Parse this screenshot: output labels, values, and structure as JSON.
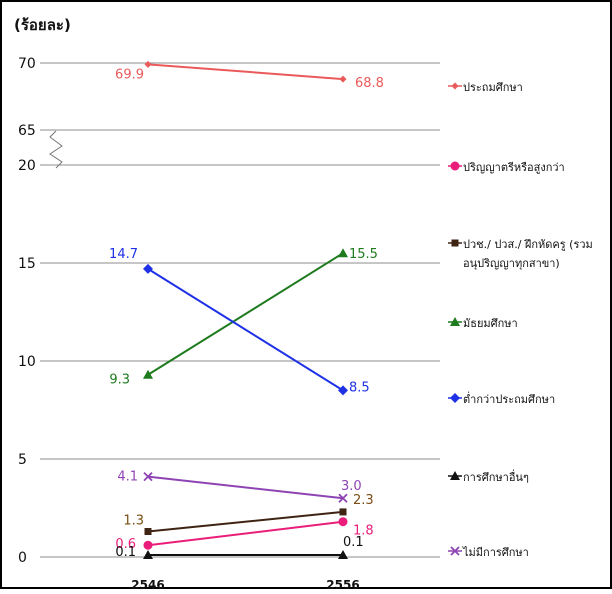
{
  "chart_data": {
    "type": "line",
    "unit_label": "(ร้อยละ)",
    "categories": [
      "2546",
      "2556"
    ],
    "y_ticks_upper": [
      "70",
      "65"
    ],
    "y_ticks_lower": [
      "20",
      "15",
      "10",
      "5",
      "0"
    ],
    "axis_break": true,
    "grid": true,
    "legend_position": "right",
    "series": [
      {
        "key": "primary",
        "name": "ประถมศึกษา",
        "values": [
          69.9,
          68.8
        ],
        "labels": [
          "69.9",
          "68.8"
        ],
        "color": "#ea5a5a",
        "marker": "diamond-small"
      },
      {
        "key": "bachelor",
        "name": "ปริญญาตรีหรือสูงกว่า",
        "values": [
          0.6,
          1.8
        ],
        "labels": [
          "0.6",
          "1.8"
        ],
        "color": "#ea1e7a",
        "marker": "circle"
      },
      {
        "key": "vocational",
        "name": "ปวช./ ปวส./ ฝึกหัดครู (รวมอนุปริญญาทุกสาขา)",
        "legend_lines": [
          "ปวช./ ปวส./ ฝึกหัดครู (รวม",
          "อนุปริญญาทุกสาขา)"
        ],
        "values": [
          1.3,
          2.3
        ],
        "labels": [
          "1.3",
          "2.3"
        ],
        "color": "#3f2313",
        "label_color": "#7a4e16",
        "marker": "square"
      },
      {
        "key": "secondary",
        "name": "มัธยมศึกษา",
        "values": [
          9.3,
          15.5
        ],
        "labels": [
          "9.3",
          "15.5"
        ],
        "color": "#1e7b1e",
        "marker": "triangle"
      },
      {
        "key": "below_primary",
        "name": "ต่ำกว่าประถมศึกษา",
        "values": [
          14.7,
          8.5
        ],
        "labels": [
          "14.7",
          "8.5"
        ],
        "color": "#1f31e6",
        "marker": "diamond"
      },
      {
        "key": "other",
        "name": "การศึกษาอื่นๆ",
        "values": [
          0.1,
          0.1
        ],
        "labels": [
          "0.1",
          "0.1"
        ],
        "color": "#111111",
        "marker": "triangle"
      },
      {
        "key": "none",
        "name": "ไม่มีการศึกษา",
        "values": [
          4.1,
          3.0
        ],
        "labels": [
          "4.1",
          "3.0"
        ],
        "color": "#8e44b3",
        "marker": "x"
      }
    ]
  }
}
